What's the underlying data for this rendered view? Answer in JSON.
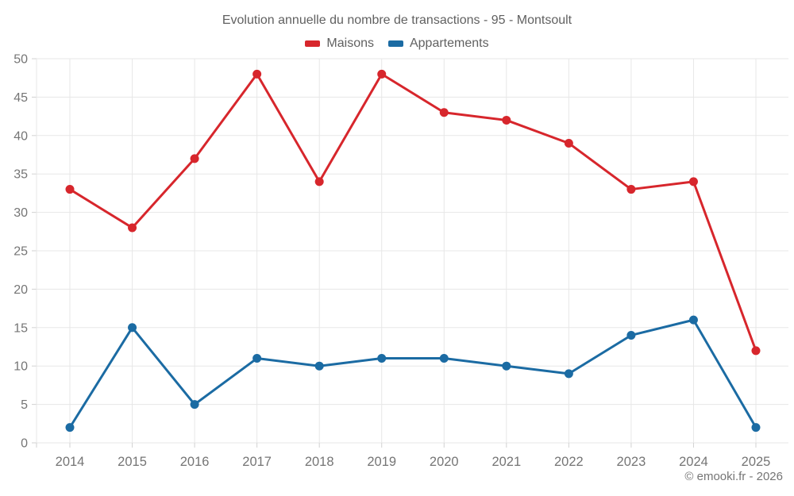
{
  "title": "Evolution annuelle du nombre de transactions - 95 - Montsoult",
  "footer": {
    "copyright": "© emooki.fr - 2026"
  },
  "chart_data": {
    "type": "line",
    "title": "Evolution annuelle du nombre de transactions - 95 - Montsoult",
    "categories": [
      "2014",
      "2015",
      "2016",
      "2017",
      "2018",
      "2019",
      "2020",
      "2021",
      "2022",
      "2023",
      "2024",
      "2025"
    ],
    "series": [
      {
        "name": "Maisons",
        "color": "#d7262c",
        "values": [
          33,
          28,
          37,
          48,
          34,
          48,
          43,
          42,
          39,
          33,
          34,
          12
        ]
      },
      {
        "name": "Appartements",
        "color": "#1b6ba3",
        "values": [
          2,
          15,
          5,
          11,
          10,
          11,
          11,
          10,
          9,
          14,
          16,
          2
        ]
      }
    ],
    "xlabel": "",
    "ylabel": "",
    "ylim": [
      0,
      50
    ],
    "ytick_step": 5,
    "grid": true,
    "legend_position": "top"
  },
  "style": {
    "grid_color": "#e7e7e7",
    "tick_color": "#d2d2d2",
    "axis_label_color": "#757575",
    "background": "#ffffff"
  }
}
